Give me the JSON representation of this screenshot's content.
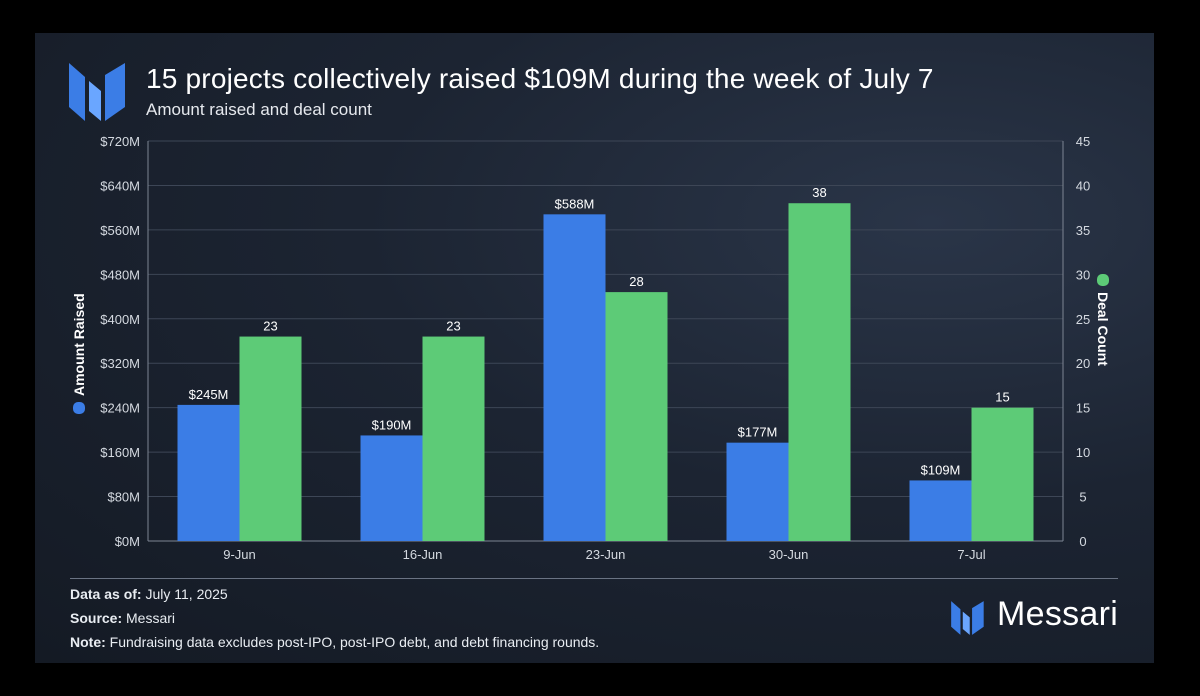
{
  "header": {
    "title": "15 projects collectively raised $109M during the week of July 7",
    "subtitle": "Amount raised and deal count"
  },
  "chart_data": {
    "type": "bar",
    "categories": [
      "9-Jun",
      "16-Jun",
      "23-Jun",
      "30-Jun",
      "7-Jul"
    ],
    "series": [
      {
        "name": "Amount Raised",
        "axis": "left",
        "color": "#3b7de6",
        "values": [
          245,
          190,
          588,
          177,
          109
        ],
        "labels": [
          "$245M",
          "$190M",
          "$588M",
          "$177M",
          "$109M"
        ]
      },
      {
        "name": "Deal Count",
        "axis": "right",
        "color": "#5dcb77",
        "values": [
          23,
          23,
          28,
          38,
          15
        ],
        "labels": [
          "23",
          "23",
          "28",
          "38",
          "15"
        ]
      }
    ],
    "y_left": {
      "label": "Amount Raised",
      "range": [
        0,
        720
      ],
      "ticks": [
        0,
        80,
        160,
        240,
        320,
        400,
        480,
        560,
        640,
        720
      ],
      "tick_labels": [
        "$0M",
        "$80M",
        "$160M",
        "$240M",
        "$320M",
        "$400M",
        "$480M",
        "$560M",
        "$640M",
        "$720M"
      ]
    },
    "y_right": {
      "label": "Deal Count",
      "range": [
        0,
        45
      ],
      "ticks": [
        0,
        5,
        10,
        15,
        20,
        25,
        30,
        35,
        40,
        45
      ],
      "tick_labels": [
        "0",
        "5",
        "10",
        "15",
        "20",
        "25",
        "30",
        "35",
        "40",
        "45"
      ]
    },
    "grid": true,
    "legend": "axis-labels"
  },
  "footer": {
    "date_label": "Data as of:",
    "date_value": " July 11, 2025",
    "source_label": "Source:",
    "source_value": " Messari",
    "note_label": "Note:",
    "note_value": " Fundraising data excludes post-IPO, post-IPO debt, and debt financing rounds."
  },
  "brand": {
    "name": "Messari",
    "logo_icon": "messari-logo-icon"
  }
}
